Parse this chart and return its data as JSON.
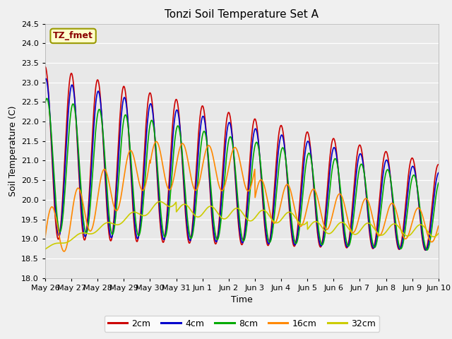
{
  "title": "Tonzi Soil Temperature Set A",
  "xlabel": "Time",
  "ylabel": "Soil Temperature (C)",
  "ylim": [
    18.0,
    24.5
  ],
  "annotation": "TZ_fmet",
  "legend_labels": [
    "2cm",
    "4cm",
    "8cm",
    "16cm",
    "32cm"
  ],
  "legend_colors": [
    "#cc0000",
    "#0000cc",
    "#00aa00",
    "#ff8800",
    "#cccc00"
  ],
  "line_width": 1.2,
  "tick_labels": [
    "May 26",
    "May 27",
    "May 28",
    "May 29",
    "May 30",
    "May 31",
    "Jun 1",
    "Jun 2",
    "Jun 3",
    "Jun 4",
    "Jun 5",
    "Jun 6",
    "Jun 7",
    "Jun 8",
    "Jun 9",
    "Jun 10"
  ],
  "n_days": 15,
  "pts_per_day": 96
}
